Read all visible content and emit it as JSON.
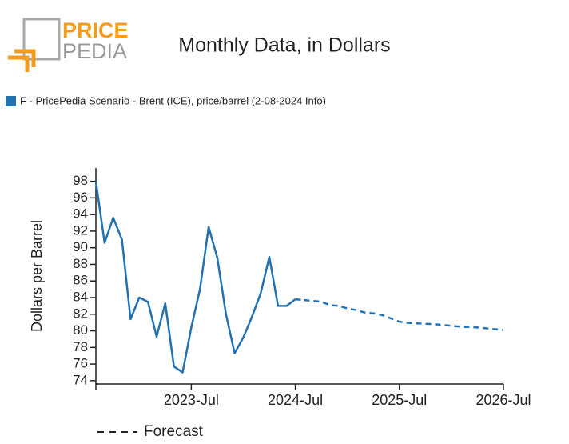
{
  "logo": {
    "line1": "PRICE",
    "line2": "PEDIA"
  },
  "chart_data": {
    "type": "line",
    "title": "Monthly Data, in Dollars",
    "y_label": "Dollars per Barrel",
    "x": [
      "2022-Aug",
      "2022-Sep",
      "2022-Oct",
      "2022-Nov",
      "2022-Dec",
      "2023-Jan",
      "2023-Feb",
      "2023-Mar",
      "2023-Apr",
      "2023-May",
      "2023-Jun",
      "2023-Jul",
      "2023-Aug",
      "2023-Sep",
      "2023-Oct",
      "2023-Nov",
      "2023-Dec",
      "2024-Jan",
      "2024-Feb",
      "2024-Mar",
      "2024-Apr",
      "2024-May",
      "2024-Jun",
      "2024-Jul",
      "2024-Aug",
      "2024-Sep",
      "2024-Oct",
      "2024-Nov",
      "2024-Dec",
      "2025-Jan",
      "2025-Feb",
      "2025-Mar",
      "2025-Apr",
      "2025-May",
      "2025-Jun",
      "2025-Jul",
      "2025-Aug",
      "2025-Sep",
      "2025-Oct",
      "2025-Nov",
      "2025-Dec",
      "2026-Jan",
      "2026-Feb",
      "2026-Mar",
      "2026-Apr",
      "2026-May",
      "2026-Jun",
      "2026-Jul"
    ],
    "series": [
      {
        "name": "F - PricePedia Scenario - Brent (ICE), price/barrel (2-08-2024 Info)",
        "color": "#2271b1",
        "values": [
          98,
          90.6,
          93.6,
          91,
          81.4,
          84,
          83.5,
          79.3,
          83.3,
          75.7,
          75,
          80.4,
          85,
          92.5,
          88.8,
          82,
          77.3,
          79.2,
          81.7,
          84.5,
          88.9,
          83,
          83,
          83.8,
          83.7,
          83.6,
          83.5,
          83.1,
          83,
          82.7,
          82.5,
          82.2,
          82.1,
          81.9,
          81.5,
          81.1,
          80.95,
          80.9,
          80.85,
          80.8,
          80.7,
          80.6,
          80.5,
          80.45,
          80.4,
          80.3,
          80.2,
          80.1
        ]
      }
    ],
    "forecast_start": "2024-Jul",
    "forecast_label": "Forecast",
    "xticks": [
      "2023-Jul",
      "2024-Jul",
      "2025-Jul",
      "2026-Jul"
    ],
    "ylim": [
      73.6,
      99.6
    ],
    "yticks": [
      74,
      76,
      78,
      80,
      82,
      84,
      86,
      88,
      90,
      92,
      94,
      96,
      98
    ]
  }
}
